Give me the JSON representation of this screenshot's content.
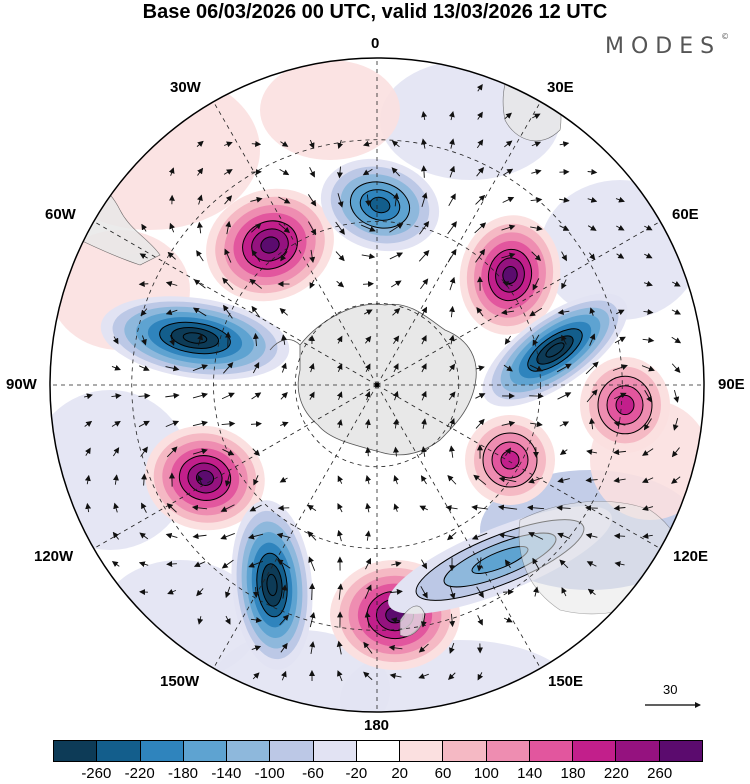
{
  "title": "Base 06/03/2026 00 UTC, valid 13/03/2026 12 UTC",
  "brand": {
    "text": "MODES",
    "mark": "©"
  },
  "map": {
    "projection": "south-polar-stereographic",
    "labels": {
      "top": "0",
      "bottom": "180",
      "left": "90W",
      "right": "90E",
      "upper_left_1": "30W",
      "upper_left_2": "60W",
      "upper_right_1": "30E",
      "upper_right_2": "60E",
      "lower_left_1": "120W",
      "lower_left_2": "150W",
      "lower_right_1": "120E",
      "lower_right_2": "150E"
    },
    "anomaly_centers": [
      {
        "name": "high-30w-60w",
        "sign": "positive",
        "value": 240
      },
      {
        "name": "low-0",
        "sign": "negative",
        "value": -200
      },
      {
        "name": "high-30e-60e",
        "sign": "positive",
        "value": 240
      },
      {
        "name": "low-60w-90w",
        "sign": "negative",
        "value": -260
      },
      {
        "name": "low-60e-90e",
        "sign": "negative",
        "value": -260
      },
      {
        "name": "high-90e",
        "sign": "positive",
        "value": 160
      },
      {
        "name": "high-120w",
        "sign": "positive",
        "value": 240
      },
      {
        "name": "high-120e",
        "sign": "positive",
        "value": 160
      },
      {
        "name": "low-150w",
        "sign": "negative",
        "value": -260
      },
      {
        "name": "high-180",
        "sign": "positive",
        "value": 220
      },
      {
        "name": "low-150e-120e",
        "sign": "negative",
        "value": -100
      }
    ]
  },
  "reference_vector": {
    "label": "30"
  },
  "colorbar": {
    "colors": [
      "#0d3b57",
      "#135e8c",
      "#2f84bd",
      "#5ea3d1",
      "#8eb8dc",
      "#bcc8e6",
      "#e2e3f3",
      "#ffffff",
      "#fbe0e0",
      "#f5b9c4",
      "#ee8db1",
      "#e2569e",
      "#c21f8b",
      "#95127f",
      "#5b0b6e"
    ],
    "ticks": [
      "-260",
      "-220",
      "-180",
      "-140",
      "-100",
      "-60",
      "-20",
      "20",
      "60",
      "100",
      "140",
      "180",
      "220",
      "260"
    ]
  },
  "colors": {
    "land": "#e8e8e8",
    "coast": "#555555",
    "grid": "#222222",
    "arrow": "#111111"
  }
}
